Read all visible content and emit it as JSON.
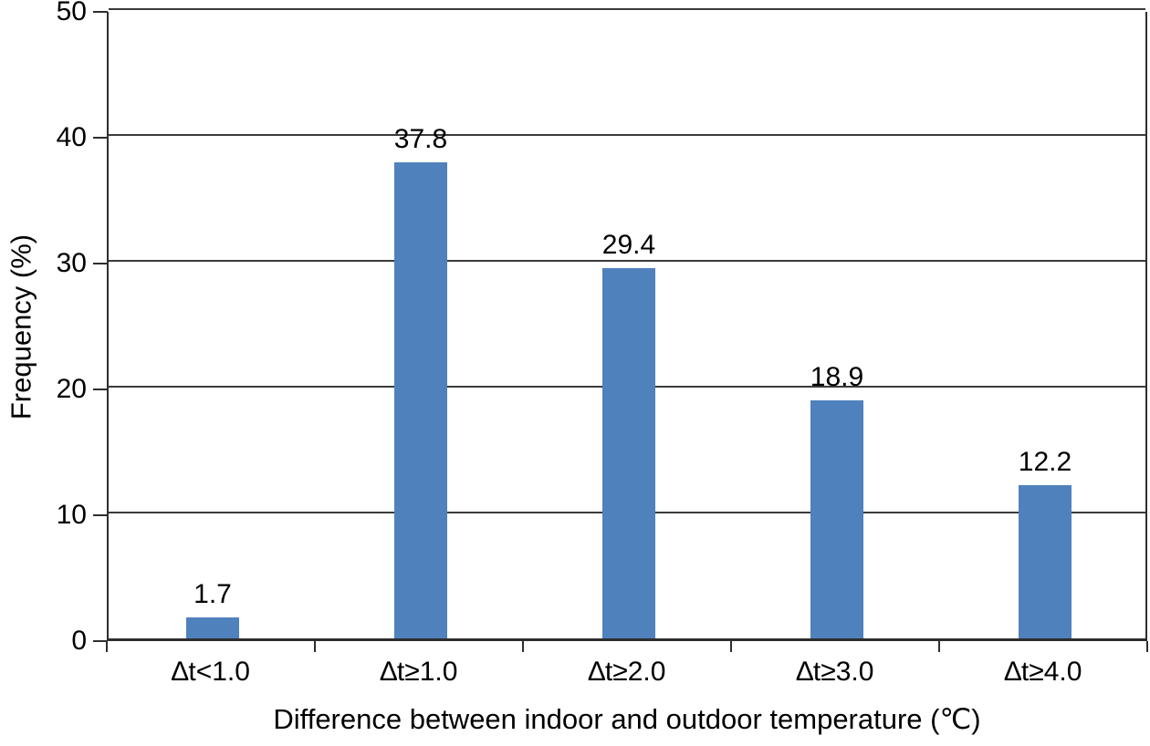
{
  "chart_data": {
    "type": "bar",
    "title": "",
    "categories": [
      "∆t<1.0",
      "∆t≥1.0",
      "∆t≥2.0",
      "∆t≥3.0",
      "∆t≥4.0"
    ],
    "values": [
      1.7,
      37.8,
      29.4,
      18.9,
      12.2
    ],
    "value_labels": [
      "1.7",
      "37.8",
      "29.4",
      "18.9",
      "12.2"
    ],
    "xlabel": "Difference between indoor and outdoor temperature (℃)",
    "ylabel": "Frequency (%)",
    "ylim": [
      0,
      50
    ],
    "ytick_interval": 10,
    "ytick_labels": [
      "0",
      "10",
      "20",
      "30",
      "40",
      "50"
    ],
    "grid": "horizontal",
    "legend": "none",
    "colors": {
      "bar_fill": "#4f81bd",
      "axis_line": "#2e2e2e",
      "gridline": "#3a3a3a",
      "text": "#000000",
      "background": "#ffffff"
    }
  }
}
